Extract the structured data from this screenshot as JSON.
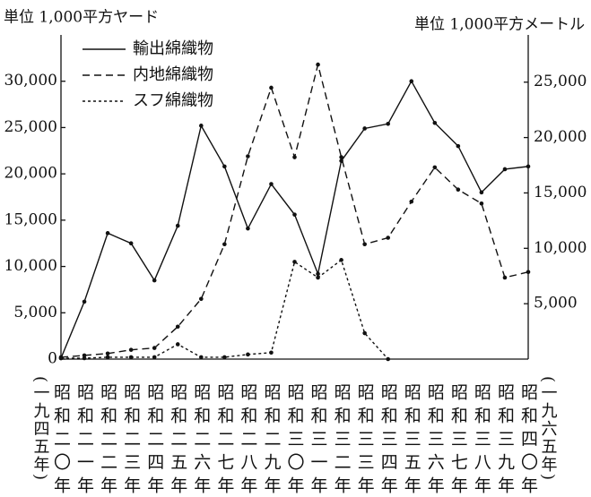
{
  "chart_data": {
    "type": "line",
    "left_unit": "単位 1,000平方ヤード",
    "right_unit": "単位 1,000平方メートル",
    "start_label": "(一九四五年)",
    "end_label": "(一九六五年)",
    "categories": [
      "昭和二〇年",
      "昭和二一年",
      "昭和二二年",
      "昭和二三年",
      "昭和二四年",
      "昭和二五年",
      "昭和二六年",
      "昭和二七年",
      "昭和二八年",
      "昭和二九年",
      "昭和三〇年",
      "昭和三一年",
      "昭和三二年",
      "昭和三三年",
      "昭和三四年",
      "昭和三五年",
      "昭和三六年",
      "昭和三七年",
      "昭和三八年",
      "昭和三九年",
      "昭和四〇年"
    ],
    "series": [
      {
        "name": "輸出綿織物",
        "color": "#111111",
        "style": "solid",
        "values": [
          100,
          6200,
          13600,
          12500,
          8500,
          14400,
          25200,
          20800,
          14100,
          18900,
          15600,
          9200,
          21400,
          24900,
          25400,
          30000,
          25500,
          23000,
          18000,
          20500,
          20800
        ]
      },
      {
        "name": "内地綿織物",
        "color": "#111111",
        "style": "dashed",
        "values": [
          200,
          400,
          600,
          1000,
          1200,
          3500,
          6500,
          12400,
          21900,
          29300,
          21800,
          31800,
          21800,
          12400,
          13100,
          17000,
          20700,
          18300,
          16800,
          8800,
          9400
        ]
      },
      {
        "name": "スフ綿織物",
        "color": "#111111",
        "style": "dotted",
        "values": [
          100,
          100,
          200,
          200,
          200,
          1600,
          200,
          200,
          500,
          700,
          10500,
          8800,
          10700,
          2800,
          0,
          null,
          null,
          null,
          null,
          null,
          null
        ]
      }
    ],
    "ylim": [
      0,
      35000
    ],
    "yticks": [
      0,
      {
        "value": 5000,
        "label": "5,000"
      },
      {
        "value": 10000,
        "label": "10,000"
      },
      {
        "value": 15000,
        "label": "15,000"
      },
      {
        "value": 20000,
        "label": "20,000"
      },
      {
        "value": 25000,
        "label": "25,000"
      },
      {
        "value": 30000,
        "label": "30,000"
      }
    ],
    "y2lim": [
      0,
      29264
    ],
    "y2ticks": [
      {
        "value": 5000,
        "label": "5,000"
      },
      {
        "value": 10000,
        "label": "10,000"
      },
      {
        "value": 15000,
        "label": "15,000"
      },
      {
        "value": 20000,
        "label": "20,000"
      },
      {
        "value": 25000,
        "label": "25,000"
      }
    ],
    "legend": "upper left"
  }
}
